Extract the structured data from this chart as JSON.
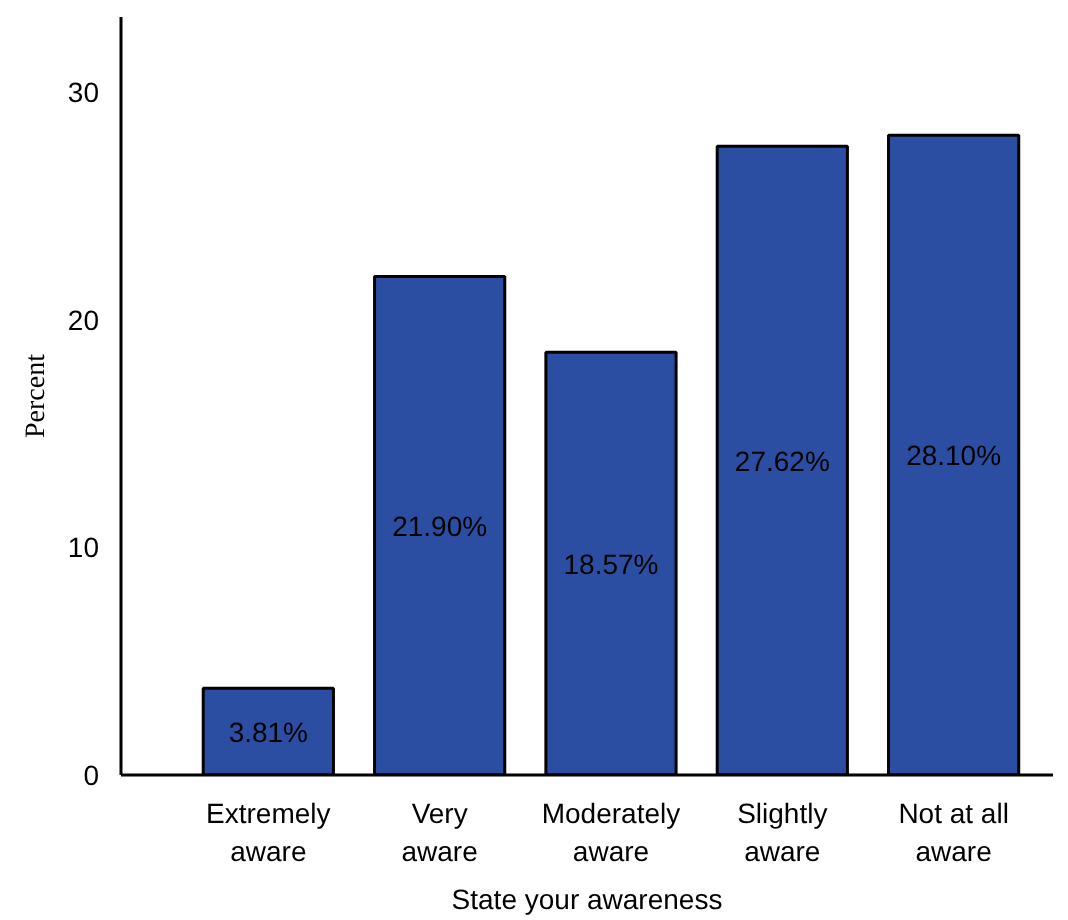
{
  "chart_data": {
    "type": "bar",
    "xlabel": "State your awareness",
    "ylabel": "Percent",
    "categories": [
      "Extremely aware",
      "Very aware",
      "Moderately aware",
      "Slightly aware",
      "Not at all aware"
    ],
    "values": [
      3.81,
      21.9,
      18.57,
      27.62,
      28.1
    ],
    "value_labels": [
      "3.81%",
      "21.90%",
      "18.57%",
      "27.62%",
      "28.10%"
    ],
    "color": "#2b4ea2",
    "ylim": [
      0,
      33.3
    ],
    "yticks": [
      0,
      10,
      20,
      30
    ],
    "grid": false
  }
}
